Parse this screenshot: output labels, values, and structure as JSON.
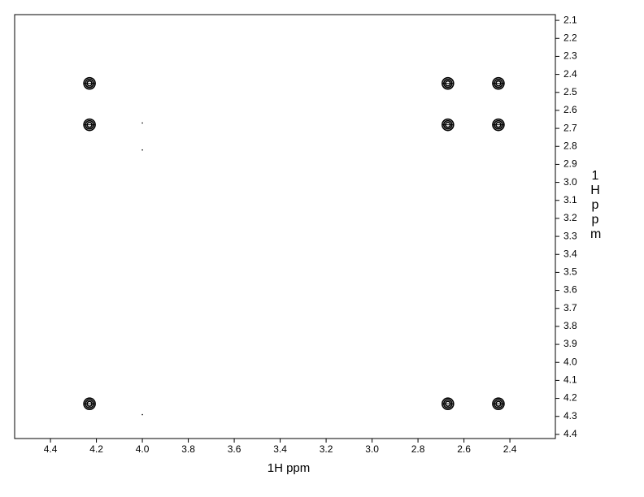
{
  "chart_data": {
    "type": "scatter",
    "x_label": "1H ppm",
    "y_label": "1H ppm",
    "x": [
      4.23,
      4.23,
      4.23,
      2.67,
      2.67,
      2.67,
      2.45,
      2.45,
      2.45,
      4.0,
      4.0,
      4.0
    ],
    "y": [
      2.45,
      2.68,
      4.23,
      2.45,
      2.68,
      4.23,
      2.45,
      2.68,
      4.23,
      2.67,
      2.82,
      4.29
    ],
    "color": "#000000",
    "xlim": [
      4.556,
      2.202
    ],
    "ylim": [
      4.423,
      2.068
    ],
    "xticks": [
      4.4,
      4.2,
      {
        "value": 4,
        "label": "4.0"
      },
      3.8,
      3.6,
      3.4,
      3.2,
      {
        "value": 3,
        "label": "3.0"
      },
      2.8,
      2.6,
      2.4
    ],
    "yticks": [
      2.1,
      2.2,
      2.3,
      2.4,
      2.5,
      2.6,
      2.7,
      2.8,
      2.9,
      {
        "value": 3,
        "label": "3.0"
      },
      3.1,
      3.2,
      3.3,
      3.4,
      3.5,
      3.6,
      3.7,
      3.8,
      3.9,
      {
        "value": 4,
        "label": "4.0"
      },
      4.1,
      4.2,
      4.3,
      4.4
    ]
  }
}
